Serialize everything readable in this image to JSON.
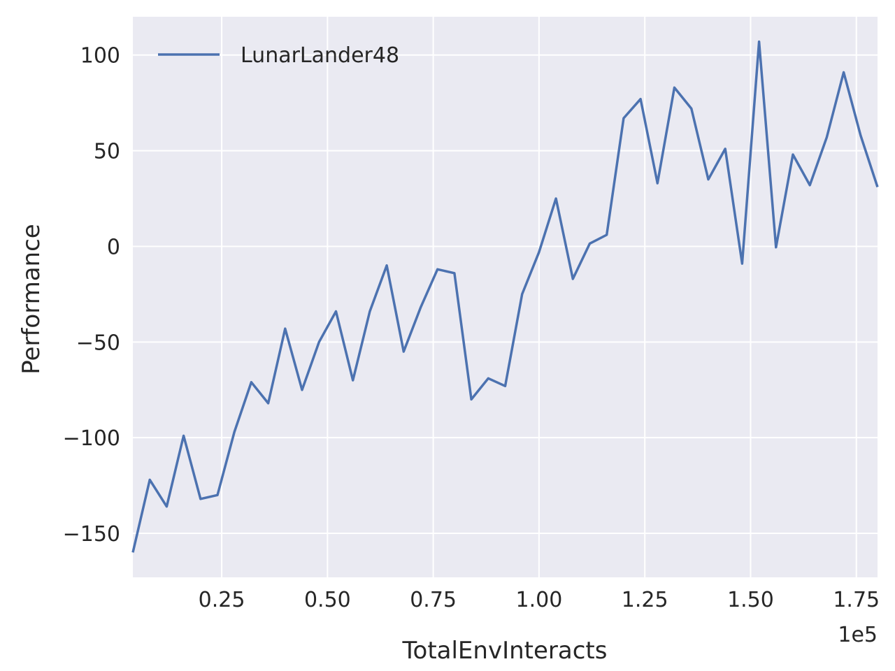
{
  "chart_data": {
    "type": "line",
    "xlabel": "TotalEnvInteracts",
    "ylabel": "Performance",
    "x_offset_label": "1e5",
    "xlim": [
      0.04,
      1.8
    ],
    "ylim": [
      -173,
      120
    ],
    "xticks": [
      0.25,
      0.5,
      0.75,
      1.0,
      1.25,
      1.5,
      1.75
    ],
    "xtick_labels": [
      "0.25",
      "0.50",
      "0.75",
      "1.00",
      "1.25",
      "1.50",
      "1.75"
    ],
    "yticks": [
      -150,
      -100,
      -50,
      0,
      50,
      100
    ],
    "ytick_labels": [
      "−150",
      "−100",
      "−50",
      "0",
      "50",
      "100"
    ],
    "grid": true,
    "legend_position": "top-left",
    "colors": {
      "background": "#eaeaf2",
      "grid": "#ffffff",
      "line": "#4c72b0",
      "text": "#262626"
    },
    "series": [
      {
        "name": "LunarLander48",
        "x": [
          0.04,
          0.08,
          0.12,
          0.16,
          0.2,
          0.24,
          0.28,
          0.32,
          0.36,
          0.4,
          0.44,
          0.48,
          0.52,
          0.56,
          0.6,
          0.64,
          0.68,
          0.72,
          0.76,
          0.8,
          0.84,
          0.88,
          0.92,
          0.96,
          1.0,
          1.04,
          1.08,
          1.12,
          1.16,
          1.2,
          1.24,
          1.28,
          1.32,
          1.36,
          1.4,
          1.44,
          1.48,
          1.52,
          1.56,
          1.6,
          1.64,
          1.68,
          1.72,
          1.76,
          1.8
        ],
        "y": [
          -160,
          -122,
          -136,
          -99,
          -132,
          -130,
          -97,
          -71,
          -82,
          -43,
          -75,
          -50,
          -34,
          -70,
          -34,
          -10,
          -55,
          -32,
          -12,
          -14,
          -80,
          -69,
          -73,
          -25,
          -3,
          25,
          -17,
          1.5,
          6,
          67,
          77,
          33,
          83,
          72,
          35,
          51,
          -9,
          107,
          -0.5,
          48,
          32,
          57,
          91,
          58,
          31
        ]
      }
    ]
  }
}
